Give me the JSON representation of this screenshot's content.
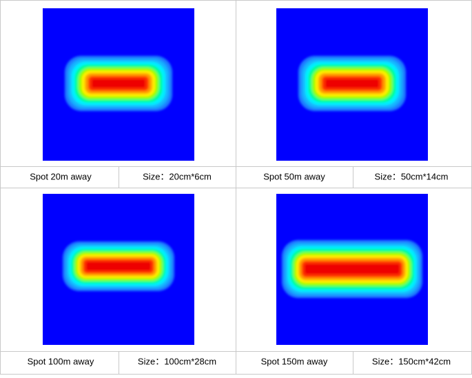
{
  "cells": [
    {
      "label": "Spot 20m away",
      "size": "Size：20cm*6cm"
    },
    {
      "label": "Spot 50m away",
      "size": "Size：50cm*14cm"
    },
    {
      "label": "Spot 100m away",
      "size": "Size：100cm*28cm"
    },
    {
      "label": "Spot 150m away",
      "size": "Size：150cm*42cm"
    }
  ]
}
